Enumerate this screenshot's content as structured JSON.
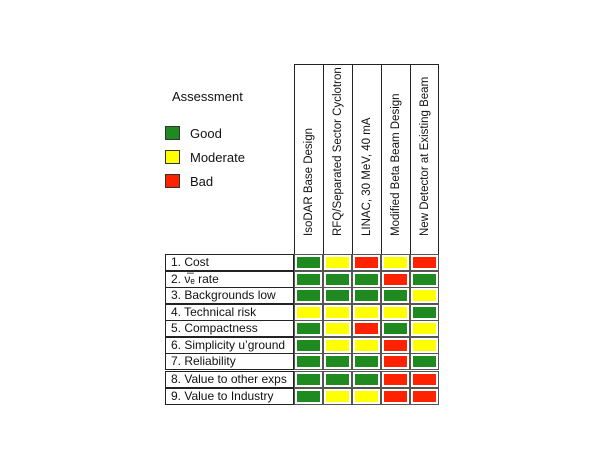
{
  "legend": {
    "title": "Assessment",
    "items": [
      {
        "key": "good",
        "label": "Good",
        "color": "#1f8a1f"
      },
      {
        "key": "moderate",
        "label": "Moderate",
        "color": "#ffff00"
      },
      {
        "key": "bad",
        "label": "Bad",
        "color": "#ff2200"
      }
    ]
  },
  "columns": [
    "IsoDAR Base Design",
    "RFQ/Separated Sector Cyclotron",
    "LINAC, 30 MeV, 40 mA",
    "Modified Beta Beam Design",
    "New Detector at Existing Beam"
  ],
  "rows": [
    {
      "label": "1. Cost",
      "ratings": [
        "good",
        "moderate",
        "bad",
        "moderate",
        "bad"
      ]
    },
    {
      "label": "2. ν̅ₑ rate",
      "ratings": [
        "good",
        "good",
        "good",
        "bad",
        "good"
      ]
    },
    {
      "label": "3. Backgrounds low",
      "ratings": [
        "good",
        "good",
        "good",
        "good",
        "moderate"
      ]
    },
    {
      "label": "4. Technical risk",
      "ratings": [
        "moderate",
        "moderate",
        "moderate",
        "moderate",
        "good"
      ]
    },
    {
      "label": "5. Compactness",
      "ratings": [
        "good",
        "moderate",
        "bad",
        "good",
        "moderate"
      ]
    },
    {
      "label": "6. Simplicity u’ground",
      "ratings": [
        "good",
        "moderate",
        "moderate",
        "bad",
        "moderate"
      ]
    },
    {
      "label": "7. Reliability",
      "ratings": [
        "good",
        "good",
        "good",
        "bad",
        "good"
      ]
    },
    {
      "label": "8. Value to other exps",
      "ratings": [
        "good",
        "good",
        "good",
        "bad",
        "bad"
      ]
    },
    {
      "label": "9. Value to Industry",
      "ratings": [
        "good",
        "moderate",
        "moderate",
        "bad",
        "bad"
      ]
    }
  ]
}
